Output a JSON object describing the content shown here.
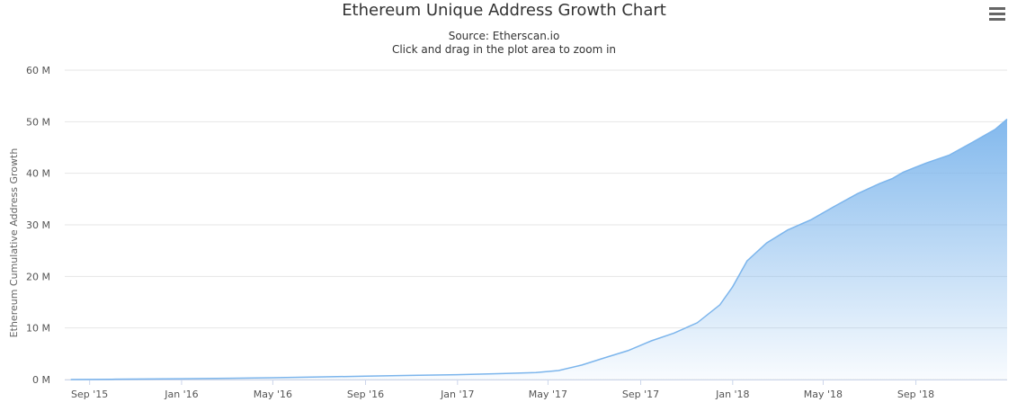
{
  "title": "Ethereum Unique Address Growth Chart",
  "subtitle_line1": "Source: Etherscan.io",
  "subtitle_line2": "Click and drag in the plot area to zoom in",
  "menu_icon": "hamburger-menu-icon",
  "colors": {
    "area_top": "#7cb5ec",
    "line": "#7cb5ec",
    "grid": "#e6e6e6",
    "axis_text": "#555555"
  },
  "chart_data": {
    "type": "area",
    "title": "Ethereum Unique Address Growth Chart",
    "subtitle": "Source: Etherscan.io",
    "ylabel": "Ethereum Cumulative Address Growth",
    "xlabel": "",
    "ylim": [
      0,
      60000000
    ],
    "xlim": [
      "2015-07-30",
      "2018-12-31"
    ],
    "y_tick_values": [
      0,
      10000000,
      20000000,
      30000000,
      40000000,
      50000000,
      60000000
    ],
    "y_tick_labels": [
      "0 M",
      "10 M",
      "20 M",
      "30 M",
      "40 M",
      "50 M",
      "60 M"
    ],
    "x_ticks": [
      {
        "date": "2015-09-01",
        "label": "Sep '15"
      },
      {
        "date": "2016-01-01",
        "label": "Jan '16"
      },
      {
        "date": "2016-05-01",
        "label": "May '16"
      },
      {
        "date": "2016-09-01",
        "label": "Sep '16"
      },
      {
        "date": "2017-01-01",
        "label": "Jan '17"
      },
      {
        "date": "2017-05-01",
        "label": "May '17"
      },
      {
        "date": "2017-09-01",
        "label": "Sep '17"
      },
      {
        "date": "2018-01-01",
        "label": "Jan '18"
      },
      {
        "date": "2018-05-01",
        "label": "May '18"
      },
      {
        "date": "2018-09-01",
        "label": "Sep '18"
      }
    ],
    "grid": true,
    "legend": "none",
    "series": [
      {
        "values": [
          [
            "2015-08-07",
            0
          ],
          [
            "2015-10-01",
            50000
          ],
          [
            "2016-01-01",
            150000
          ],
          [
            "2016-03-01",
            250000
          ],
          [
            "2016-05-01",
            350000
          ],
          [
            "2016-07-01",
            500000
          ],
          [
            "2016-09-01",
            650000
          ],
          [
            "2016-11-01",
            800000
          ],
          [
            "2017-01-01",
            950000
          ],
          [
            "2017-03-01",
            1150000
          ],
          [
            "2017-04-15",
            1350000
          ],
          [
            "2017-05-15",
            1750000
          ],
          [
            "2017-06-15",
            2800000
          ],
          [
            "2017-07-15",
            4200000
          ],
          [
            "2017-08-15",
            5600000
          ],
          [
            "2017-09-15",
            7500000
          ],
          [
            "2017-10-15",
            9000000
          ],
          [
            "2017-11-15",
            11000000
          ],
          [
            "2017-12-15",
            14500000
          ],
          [
            "2018-01-01",
            18000000
          ],
          [
            "2018-01-20",
            23000000
          ],
          [
            "2018-02-15",
            26500000
          ],
          [
            "2018-03-15",
            29000000
          ],
          [
            "2018-04-15",
            31000000
          ],
          [
            "2018-05-15",
            33500000
          ],
          [
            "2018-06-15",
            36000000
          ],
          [
            "2018-07-15",
            38000000
          ],
          [
            "2018-08-01",
            39000000
          ],
          [
            "2018-08-15",
            40200000
          ],
          [
            "2018-09-15",
            42000000
          ],
          [
            "2018-10-15",
            43500000
          ],
          [
            "2018-11-15",
            46000000
          ],
          [
            "2018-12-15",
            48500000
          ],
          [
            "2018-12-31",
            50500000
          ]
        ]
      }
    ]
  }
}
